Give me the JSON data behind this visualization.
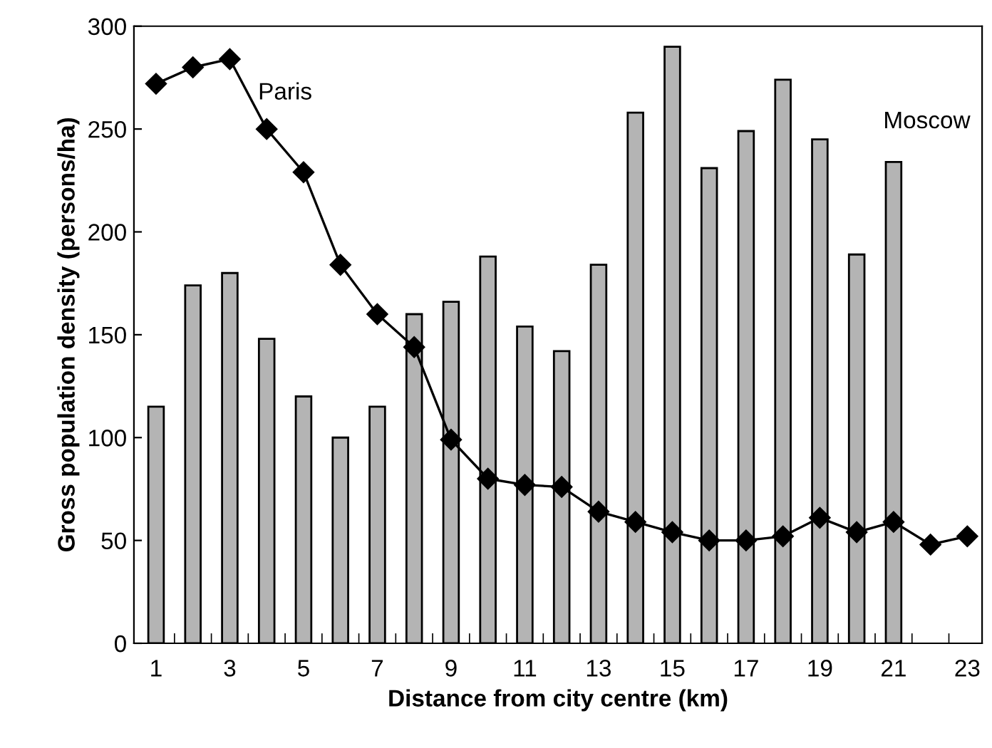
{
  "chart_data": {
    "type": "bar",
    "xlabel": "Distance from city centre (km)",
    "ylabel": "Gross population density (persons/ha)",
    "categories": [
      "1",
      null,
      "3",
      null,
      "5",
      null,
      "7",
      null,
      "9",
      null,
      "11",
      null,
      "13",
      null,
      "15",
      null,
      "17",
      null,
      "19",
      null,
      "21",
      null,
      "23"
    ],
    "series": [
      {
        "name": "Moscow",
        "color": "#b4b4b4",
        "values": [
          115,
          174,
          180,
          148,
          120,
          100,
          115,
          160,
          166,
          188,
          154,
          142,
          184,
          258,
          290,
          231,
          249,
          274,
          245,
          189,
          234,
          null,
          null
        ]
      },
      {
        "name": "Paris",
        "type": "line",
        "color": "#000000",
        "marker": "diamond",
        "values": [
          272,
          280,
          284,
          250,
          229,
          184,
          160,
          144,
          99,
          80,
          77,
          76,
          64,
          59,
          54,
          50,
          50,
          52,
          61,
          54,
          59,
          48,
          52
        ]
      }
    ],
    "ylim": [
      0,
      300
    ],
    "yticks": [
      0,
      50,
      100,
      150,
      200,
      250,
      300
    ],
    "grid": false,
    "legend": false
  }
}
